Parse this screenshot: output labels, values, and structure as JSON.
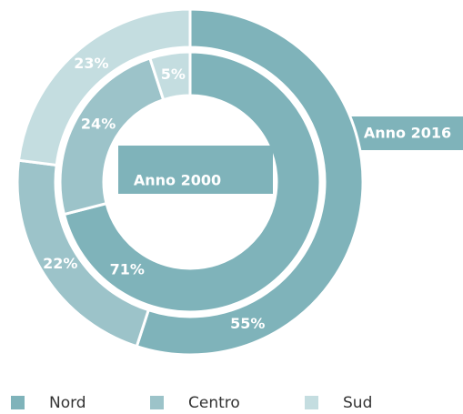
{
  "chart_data": {
    "type": "donut",
    "categories": [
      "Nord",
      "Centro",
      "Sud"
    ],
    "colors": [
      "#7fb3ba",
      "#9cc3c9",
      "#c4dde0"
    ],
    "series": [
      {
        "name": "Anno 2000",
        "values": [
          71,
          24,
          5
        ],
        "value_labels": [
          "71%",
          "24%",
          "5%"
        ]
      },
      {
        "name": "Anno 2016",
        "values": [
          55,
          22,
          23
        ],
        "value_labels": [
          "55%",
          "22%",
          "23%"
        ]
      }
    ]
  }
}
